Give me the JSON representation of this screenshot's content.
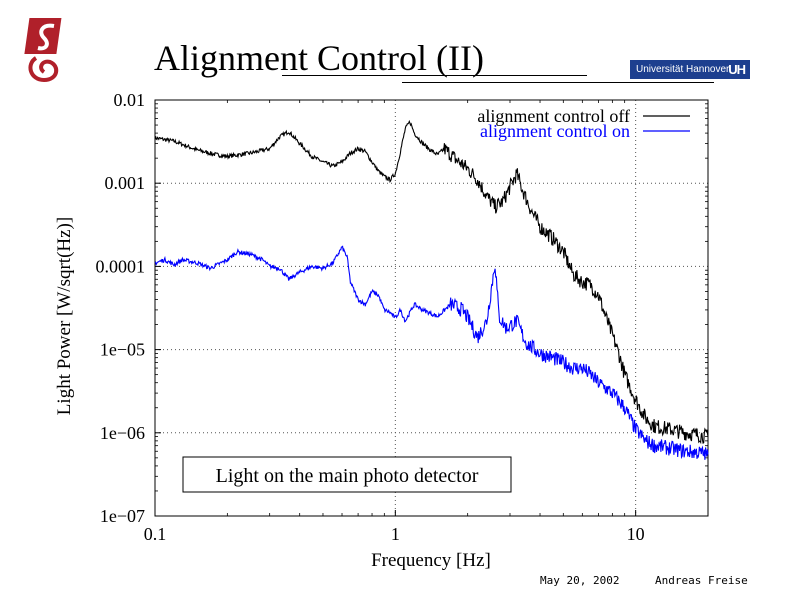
{
  "slide": {
    "title": "Alignment Control (II)",
    "university": "Universität Hannover",
    "university_mark": "UH",
    "footer_date": "May 20, 2002",
    "footer_author": "Andreas Freise"
  },
  "colors": {
    "series_off": "#000000",
    "series_on": "#0000ff",
    "grid": "#555555",
    "logo": "#b0202a",
    "university_bar": "#1d3f8f"
  },
  "chart_data": {
    "type": "line",
    "xscale": "log",
    "yscale": "log",
    "xlim": [
      0.1,
      20
    ],
    "ylim": [
      1e-07,
      0.01
    ],
    "xlabel": "Frequency [Hz]",
    "ylabel": "Light Power [W/sqrt(Hz)]",
    "xticks": [
      {
        "value": 0.1,
        "label": "0.1"
      },
      {
        "value": 1,
        "label": "1"
      },
      {
        "value": 10,
        "label": "10"
      }
    ],
    "yticks": [
      {
        "value": 0.01,
        "label": "0.01"
      },
      {
        "value": 0.001,
        "label": "0.001"
      },
      {
        "value": 0.0001,
        "label": "0.0001"
      },
      {
        "value": 1e-05,
        "label": "1e−05"
      },
      {
        "value": 1e-06,
        "label": "1e−06"
      },
      {
        "value": 1e-07,
        "label": "1e−07"
      }
    ],
    "grid": "dotted at decades",
    "legend_position": "top-right",
    "annotation": "Light on the main photo detector",
    "series": [
      {
        "name": "alignment control off",
        "color": "#000000",
        "points": [
          [
            0.1,
            0.0035
          ],
          [
            0.12,
            0.0032
          ],
          [
            0.15,
            0.0025
          ],
          [
            0.18,
            0.0022
          ],
          [
            0.2,
            0.0021
          ],
          [
            0.25,
            0.0023
          ],
          [
            0.3,
            0.0026
          ],
          [
            0.33,
            0.0036
          ],
          [
            0.36,
            0.0042
          ],
          [
            0.4,
            0.003
          ],
          [
            0.45,
            0.0021
          ],
          [
            0.5,
            0.0018
          ],
          [
            0.55,
            0.0016
          ],
          [
            0.6,
            0.0018
          ],
          [
            0.65,
            0.0023
          ],
          [
            0.7,
            0.0026
          ],
          [
            0.75,
            0.0024
          ],
          [
            0.8,
            0.0018
          ],
          [
            0.85,
            0.0014
          ],
          [
            0.9,
            0.0012
          ],
          [
            0.95,
            0.0011
          ],
          [
            1.0,
            0.0013
          ],
          [
            1.05,
            0.0024
          ],
          [
            1.1,
            0.0045
          ],
          [
            1.15,
            0.0055
          ],
          [
            1.2,
            0.004
          ],
          [
            1.3,
            0.003
          ],
          [
            1.4,
            0.0025
          ],
          [
            1.5,
            0.0022
          ],
          [
            1.6,
            0.0026
          ],
          [
            1.8,
            0.0019
          ],
          [
            2.0,
            0.0015
          ],
          [
            2.2,
            0.0011
          ],
          [
            2.4,
            0.0007
          ],
          [
            2.6,
            0.00052
          ],
          [
            2.8,
            0.0006
          ],
          [
            3.0,
            0.0009
          ],
          [
            3.2,
            0.0013
          ],
          [
            3.4,
            0.0008
          ],
          [
            3.7,
            0.00045
          ],
          [
            4.0,
            0.0003
          ],
          [
            4.5,
            0.00022
          ],
          [
            5.0,
            0.00015
          ],
          [
            5.5,
            8e-05
          ],
          [
            6.0,
            6.5e-05
          ],
          [
            6.5,
            6e-05
          ],
          [
            7.0,
            4.5e-05
          ],
          [
            7.5,
            2.5e-05
          ],
          [
            8.0,
            1.5e-05
          ],
          [
            8.5,
            9e-06
          ],
          [
            9.0,
            5e-06
          ],
          [
            10.0,
            2.5e-06
          ],
          [
            11.0,
            1.5e-06
          ],
          [
            12.0,
            1.2e-06
          ],
          [
            14.0,
            1.1e-06
          ],
          [
            16.0,
            1e-06
          ],
          [
            18.0,
            9.5e-07
          ],
          [
            20.0,
            9e-07
          ]
        ]
      },
      {
        "name": "alignment control on",
        "color": "#0000ff",
        "points": [
          [
            0.1,
            0.00011
          ],
          [
            0.11,
            0.00012
          ],
          [
            0.12,
            0.000105
          ],
          [
            0.13,
            0.00012
          ],
          [
            0.15,
            0.00011
          ],
          [
            0.17,
            9.5e-05
          ],
          [
            0.2,
            0.00012
          ],
          [
            0.22,
            0.00015
          ],
          [
            0.25,
            0.00014
          ],
          [
            0.28,
            0.00012
          ],
          [
            0.3,
            0.0001
          ],
          [
            0.33,
            9.5e-05
          ],
          [
            0.36,
            7e-05
          ],
          [
            0.4,
            8.5e-05
          ],
          [
            0.45,
            0.0001
          ],
          [
            0.5,
            9.5e-05
          ],
          [
            0.55,
            0.00011
          ],
          [
            0.6,
            0.00017
          ],
          [
            0.63,
            0.00013
          ],
          [
            0.65,
            6.5e-05
          ],
          [
            0.7,
            4e-05
          ],
          [
            0.75,
            3.5e-05
          ],
          [
            0.8,
            5e-05
          ],
          [
            0.85,
            4.5e-05
          ],
          [
            0.9,
            3e-05
          ],
          [
            0.95,
            2.8e-05
          ],
          [
            1.0,
            2.4e-05
          ],
          [
            1.05,
            3e-05
          ],
          [
            1.1,
            2.2e-05
          ],
          [
            1.2,
            3.5e-05
          ],
          [
            1.3,
            3e-05
          ],
          [
            1.5,
            2.5e-05
          ],
          [
            1.7,
            3.5e-05
          ],
          [
            1.9,
            3e-05
          ],
          [
            2.0,
            2.4e-05
          ],
          [
            2.2,
            1.4e-05
          ],
          [
            2.4,
            2.2e-05
          ],
          [
            2.6,
            0.00011
          ],
          [
            2.7,
            2.5e-05
          ],
          [
            2.9,
            1.8e-05
          ],
          [
            3.2,
            2.2e-05
          ],
          [
            3.5,
            1.2e-05
          ],
          [
            4.0,
            9e-06
          ],
          [
            4.5,
            8e-06
          ],
          [
            5.0,
            7e-06
          ],
          [
            5.5,
            6e-06
          ],
          [
            6.0,
            6e-06
          ],
          [
            6.5,
            5e-06
          ],
          [
            7.0,
            4e-06
          ],
          [
            8.0,
            3e-06
          ],
          [
            9.0,
            2e-06
          ],
          [
            10.0,
            1.1e-06
          ],
          [
            11.0,
            8e-07
          ],
          [
            12.0,
            7e-07
          ],
          [
            14.0,
            6.5e-07
          ],
          [
            16.0,
            6e-07
          ],
          [
            18.0,
            5.8e-07
          ],
          [
            20.0,
            5.5e-07
          ]
        ]
      }
    ]
  }
}
